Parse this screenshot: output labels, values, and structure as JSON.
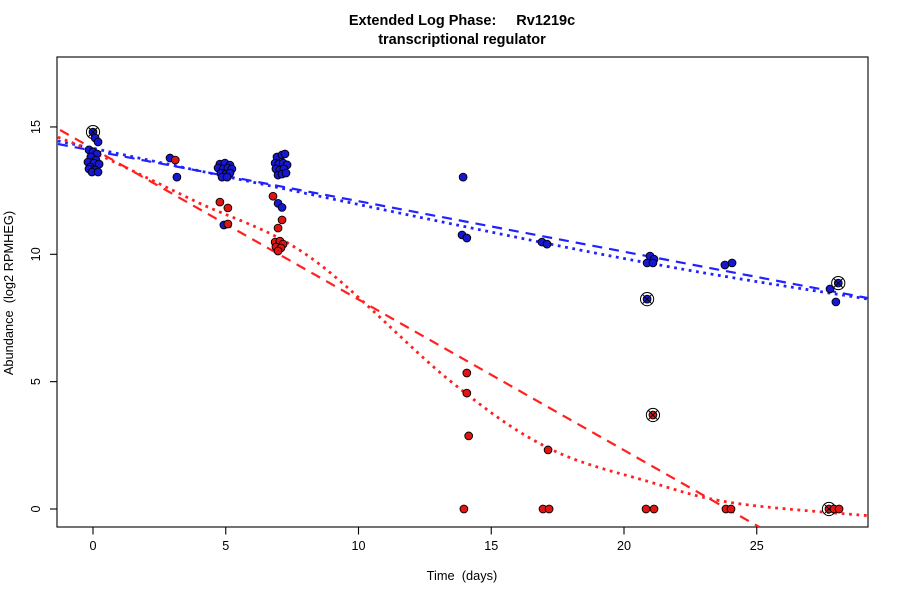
{
  "title": {
    "line1_left": "Extended Log Phase:",
    "line1_right": "Rv1219c",
    "line2": "transcriptional regulator"
  },
  "axes": {
    "xlabel": "Time  (days)",
    "ylabel": "Abundance  (log2 RPMHEG)",
    "x_ticks": [
      0,
      5,
      10,
      15,
      20,
      25
    ],
    "y_ticks": [
      0,
      5,
      10,
      15
    ]
  },
  "chart_data": {
    "type": "scatter",
    "title": "Extended Log Phase: Rv1219c transcriptional regulator",
    "xlabel": "Time (days)",
    "ylabel": "Abundance (log2 RPMHEG)",
    "xlim": [
      -1.3,
      29.2
    ],
    "ylim": [
      -0.7,
      17.8
    ],
    "x_ticks": [
      0,
      5,
      10,
      15,
      20,
      25
    ],
    "y_ticks": [
      0,
      5,
      10,
      15
    ],
    "grid": false,
    "legend": false,
    "note": "circled flag 1 marks points drawn with circle-X outlier symbol",
    "series": [
      {
        "name": "blue",
        "point_color": "#1717d1",
        "points": [
          [
            0.0,
            14.8,
            1
          ],
          [
            0.08,
            14.57,
            0
          ],
          [
            0.19,
            14.41,
            0
          ],
          [
            -0.15,
            14.1,
            0
          ],
          [
            0.0,
            14.02,
            0
          ],
          [
            0.15,
            13.94,
            0
          ],
          [
            -0.08,
            13.82,
            0
          ],
          [
            0.11,
            13.7,
            0
          ],
          [
            -0.19,
            13.62,
            0
          ],
          [
            0.04,
            13.58,
            0
          ],
          [
            0.23,
            13.54,
            0
          ],
          [
            -0.11,
            13.43,
            0
          ],
          [
            -0.15,
            13.35,
            0
          ],
          [
            0.08,
            13.31,
            0
          ],
          [
            -0.04,
            13.23,
            0
          ],
          [
            0.19,
            13.23,
            0
          ],
          [
            2.9,
            13.78,
            0
          ],
          [
            3.16,
            13.03,
            0
          ],
          [
            4.78,
            13.54,
            0
          ],
          [
            4.97,
            13.58,
            0
          ],
          [
            5.16,
            13.5,
            0
          ],
          [
            4.71,
            13.39,
            0
          ],
          [
            4.9,
            13.35,
            0
          ],
          [
            5.08,
            13.39,
            0
          ],
          [
            5.23,
            13.35,
            0
          ],
          [
            4.82,
            13.19,
            0
          ],
          [
            5.01,
            13.15,
            0
          ],
          [
            5.16,
            13.19,
            0
          ],
          [
            4.86,
            13.03,
            0
          ],
          [
            5.05,
            13.03,
            0
          ],
          [
            4.93,
            11.15,
            0
          ],
          [
            6.93,
            13.82,
            0
          ],
          [
            7.12,
            13.9,
            0
          ],
          [
            7.23,
            13.94,
            0
          ],
          [
            6.86,
            13.58,
            0
          ],
          [
            7.0,
            13.55,
            0
          ],
          [
            7.16,
            13.58,
            0
          ],
          [
            7.31,
            13.51,
            0
          ],
          [
            6.89,
            13.35,
            0
          ],
          [
            7.04,
            13.31,
            0
          ],
          [
            7.19,
            13.35,
            0
          ],
          [
            6.97,
            13.11,
            0
          ],
          [
            7.12,
            13.15,
            0
          ],
          [
            7.27,
            13.19,
            0
          ],
          [
            6.97,
            12.0,
            0
          ],
          [
            7.12,
            11.84,
            0
          ],
          [
            13.94,
            13.03,
            0
          ],
          [
            13.9,
            10.76,
            0
          ],
          [
            14.08,
            10.64,
            0
          ],
          [
            16.91,
            10.48,
            0
          ],
          [
            17.1,
            10.4,
            0
          ],
          [
            20.98,
            9.93,
            0
          ],
          [
            21.13,
            9.81,
            0
          ],
          [
            20.87,
            9.66,
            0
          ],
          [
            21.09,
            9.66,
            0
          ],
          [
            20.87,
            8.24,
            1
          ],
          [
            23.8,
            9.58,
            0
          ],
          [
            24.07,
            9.66,
            0
          ],
          [
            27.76,
            8.64,
            0
          ],
          [
            28.07,
            8.87,
            1
          ],
          [
            27.98,
            8.13,
            0
          ]
        ]
      },
      {
        "name": "red",
        "point_color": "#de1512",
        "points": [
          [
            3.1,
            13.7,
            0
          ],
          [
            4.78,
            12.05,
            0
          ],
          [
            5.08,
            11.82,
            0
          ],
          [
            5.08,
            11.19,
            0
          ],
          [
            6.78,
            12.28,
            0
          ],
          [
            7.12,
            11.35,
            0
          ],
          [
            6.97,
            11.03,
            0
          ],
          [
            6.86,
            10.48,
            0
          ],
          [
            7.04,
            10.52,
            0
          ],
          [
            7.16,
            10.4,
            0
          ],
          [
            6.89,
            10.29,
            0
          ],
          [
            7.08,
            10.25,
            0
          ],
          [
            6.97,
            10.13,
            0
          ],
          [
            14.08,
            5.34,
            0
          ],
          [
            14.08,
            4.55,
            0
          ],
          [
            14.15,
            2.87,
            0
          ],
          [
            13.97,
            0.0,
            0
          ],
          [
            17.14,
            2.32,
            0
          ],
          [
            16.95,
            0.0,
            0
          ],
          [
            17.18,
            0.0,
            0
          ],
          [
            21.09,
            3.69,
            1
          ],
          [
            20.83,
            0.0,
            0
          ],
          [
            21.13,
            0.0,
            0
          ],
          [
            23.84,
            0.0,
            0
          ],
          [
            24.03,
            0.0,
            0
          ],
          [
            27.72,
            0.0,
            1
          ],
          [
            27.91,
            0.0,
            0
          ],
          [
            28.1,
            0.0,
            0
          ]
        ]
      }
    ],
    "fit_lines": [
      {
        "name": "blue-longdash",
        "color": "#2222ff",
        "style": "longdash",
        "points": [
          [
            -1.32,
            14.33
          ],
          [
            29.19,
            8.28
          ]
        ]
      },
      {
        "name": "blue-dotted",
        "color": "#2222ff",
        "style": "dotted",
        "points": [
          [
            -1.32,
            14.45
          ],
          [
            18.72,
            10.09
          ],
          [
            29.19,
            8.24
          ]
        ]
      },
      {
        "name": "red-longdash",
        "color": "#ff2020",
        "style": "longdash",
        "points": [
          [
            -1.24,
            14.88
          ],
          [
            25.1,
            -0.71
          ]
        ]
      },
      {
        "name": "red-dotted",
        "color": "#ff2020",
        "style": "dotted",
        "points": [
          [
            -1.32,
            14.6
          ],
          [
            0.0,
            14.02
          ],
          [
            3.84,
            12.09
          ],
          [
            8.17,
            9.89
          ],
          [
            13.45,
            5.03
          ],
          [
            17.14,
            2.4
          ],
          [
            20.98,
            1.06
          ],
          [
            24.11,
            0.24
          ],
          [
            29.27,
            -0.27
          ]
        ]
      }
    ]
  }
}
